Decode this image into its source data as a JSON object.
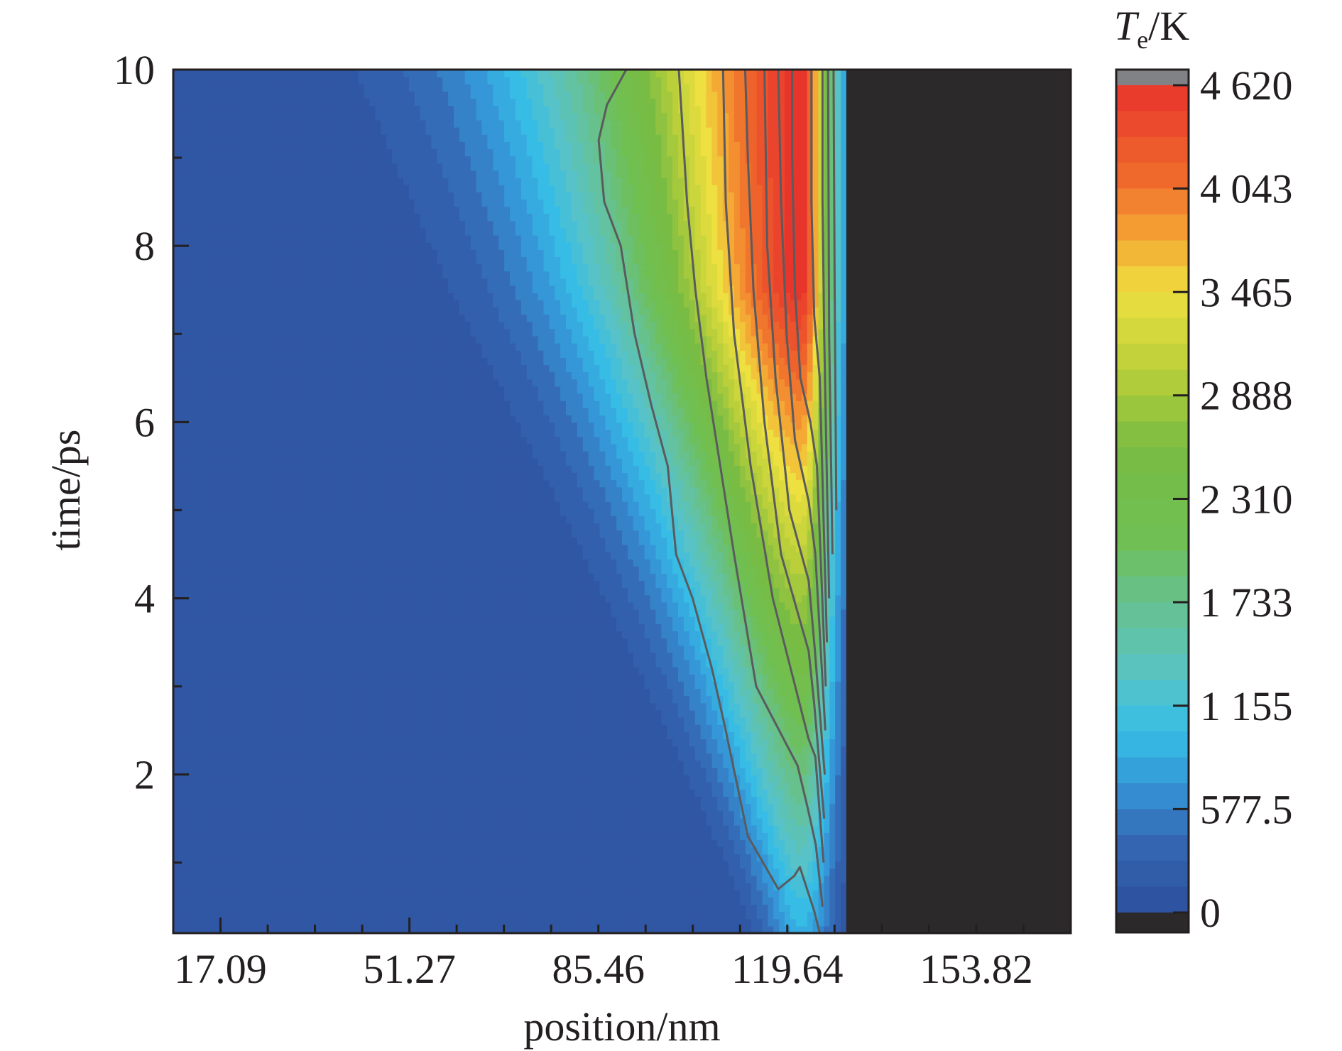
{
  "chart_data": {
    "type": "heatmap",
    "subtype": "filled-contour",
    "xlabel": "position/nm",
    "ylabel": "time/ps",
    "x_tick_labels": [
      "17.09",
      "51.27",
      "85.46",
      "119.64",
      "153.82"
    ],
    "x_ticks": [
      17.09,
      51.27,
      85.46,
      119.64,
      153.82
    ],
    "xlim": [
      8.545,
      170.91
    ],
    "y_tick_labels": [
      "2",
      "4",
      "6",
      "8",
      "10"
    ],
    "y_ticks": [
      2,
      4,
      6,
      8,
      10
    ],
    "ylim": [
      0.2,
      10
    ],
    "colorbar": {
      "title_main": "T",
      "title_sub": "e",
      "title_unit": "/K",
      "tick_labels": [
        "0",
        "577.5",
        "1 155",
        "1 733",
        "2 310",
        "2 888",
        "3 465",
        "4 043",
        "4 620"
      ],
      "ticks": [
        0,
        577.5,
        1155,
        1733,
        2310,
        2888,
        3465,
        4043,
        4620
      ],
      "range": [
        0,
        4620
      ],
      "under_color": "#2b2929",
      "over_color": "#818285"
    },
    "colorscale": [
      {
        "v": 0,
        "c": "#2d4e9c"
      },
      {
        "v": 400,
        "c": "#3467b3"
      },
      {
        "v": 700,
        "c": "#3594d6"
      },
      {
        "v": 1000,
        "c": "#36bde6"
      },
      {
        "v": 1300,
        "c": "#57c3c8"
      },
      {
        "v": 1700,
        "c": "#66c192"
      },
      {
        "v": 2100,
        "c": "#6fbf53"
      },
      {
        "v": 2600,
        "c": "#79bc43"
      },
      {
        "v": 3000,
        "c": "#b6ce3a"
      },
      {
        "v": 3465,
        "c": "#eee040"
      },
      {
        "v": 3800,
        "c": "#f5a033"
      },
      {
        "v": 4100,
        "c": "#ef6b2c"
      },
      {
        "v": 4620,
        "c": "#e8352c"
      }
    ],
    "background_region": {
      "color": "#2b2929",
      "x_start": 130.3
    },
    "hot_region": {
      "peak_position_nm": 122.0,
      "surface_position_nm": 130.0,
      "note_values": "temperature rises with time; peak ~4620 K near 122 nm at t>7 ps"
    },
    "contour_color": "#5a5b5e",
    "contours": [
      {
        "name": "contour-1",
        "points": [
          [
            125.5,
            0.2
          ],
          [
            124.5,
            0.45
          ],
          [
            123.2,
            0.7
          ],
          [
            121.9,
            0.95
          ],
          [
            120.9,
            0.85
          ],
          [
            118.0,
            0.7
          ],
          [
            112.5,
            1.3
          ],
          [
            108.5,
            2.5
          ],
          [
            106.0,
            3.2
          ],
          [
            102.5,
            4.0
          ],
          [
            99.5,
            4.5
          ],
          [
            98.0,
            5.5
          ],
          [
            95.0,
            6.2
          ],
          [
            92.0,
            7.0
          ],
          [
            89.5,
            8.0
          ],
          [
            86.5,
            8.5
          ],
          [
            85.5,
            9.2
          ],
          [
            87.0,
            9.6
          ],
          [
            90.5,
            10.0
          ]
        ]
      },
      {
        "name": "contour-2",
        "points": [
          [
            126.0,
            0.5
          ],
          [
            124.8,
            1.2
          ],
          [
            123.4,
            1.6
          ],
          [
            121.5,
            2.1
          ],
          [
            114.0,
            3.0
          ],
          [
            110.0,
            4.5
          ],
          [
            107.5,
            5.5
          ],
          [
            105.0,
            6.5
          ],
          [
            103.0,
            7.5
          ],
          [
            101.5,
            8.5
          ],
          [
            100.5,
            9.5
          ],
          [
            100.0,
            10.0
          ]
        ]
      },
      {
        "name": "contour-3",
        "points": [
          [
            126.2,
            1.0
          ],
          [
            124.7,
            2.2
          ],
          [
            123.5,
            2.4
          ],
          [
            117.0,
            4.0
          ],
          [
            113.0,
            5.5
          ],
          [
            110.0,
            7.0
          ],
          [
            108.5,
            8.5
          ],
          [
            108.0,
            10.0
          ]
        ]
      },
      {
        "name": "contour-4",
        "points": [
          [
            126.3,
            1.5
          ],
          [
            124.5,
            2.8
          ],
          [
            123.5,
            3.4
          ],
          [
            118.5,
            4.5
          ],
          [
            115.5,
            6.0
          ],
          [
            113.5,
            7.5
          ],
          [
            112.5,
            9.0
          ],
          [
            112.0,
            10.0
          ]
        ]
      },
      {
        "name": "contour-5",
        "points": [
          [
            126.4,
            2.0
          ],
          [
            124.5,
            3.5
          ],
          [
            123.5,
            4.2
          ],
          [
            120.0,
            5.0
          ],
          [
            117.5,
            6.5
          ],
          [
            116.0,
            8.0
          ],
          [
            115.5,
            10.0
          ]
        ]
      },
      {
        "name": "contour-6",
        "points": [
          [
            126.5,
            2.5
          ],
          [
            124.7,
            4.5
          ],
          [
            123.5,
            5.1
          ],
          [
            121.0,
            5.8
          ],
          [
            119.5,
            7.0
          ],
          [
            118.5,
            8.5
          ],
          [
            118.0,
            10.0
          ]
        ]
      },
      {
        "name": "contour-7",
        "points": [
          [
            126.6,
            3.0
          ],
          [
            125.0,
            5.5
          ],
          [
            123.8,
            6.0
          ],
          [
            122.0,
            6.5
          ],
          [
            121.0,
            7.5
          ],
          [
            120.5,
            9.0
          ],
          [
            120.5,
            10.0
          ]
        ]
      },
      {
        "name": "contour-8",
        "points": [
          [
            126.8,
            3.5
          ],
          [
            125.5,
            6.5
          ],
          [
            124.5,
            7.2
          ],
          [
            124.0,
            8.5
          ],
          [
            124.0,
            10.0
          ]
        ]
      },
      {
        "name": "contour-9",
        "points": [
          [
            127.2,
            4.0
          ],
          [
            126.3,
            7.0
          ],
          [
            126.0,
            8.5
          ],
          [
            126.0,
            10.0
          ]
        ]
      },
      {
        "name": "contour-10",
        "points": [
          [
            127.8,
            4.5
          ],
          [
            127.2,
            7.0
          ],
          [
            127.0,
            10.0
          ]
        ]
      },
      {
        "name": "contour-11",
        "points": [
          [
            128.5,
            5.0
          ],
          [
            128.2,
            7.5
          ],
          [
            128.0,
            10.0
          ]
        ]
      }
    ],
    "grid": false,
    "legend": "colorbar-right"
  }
}
